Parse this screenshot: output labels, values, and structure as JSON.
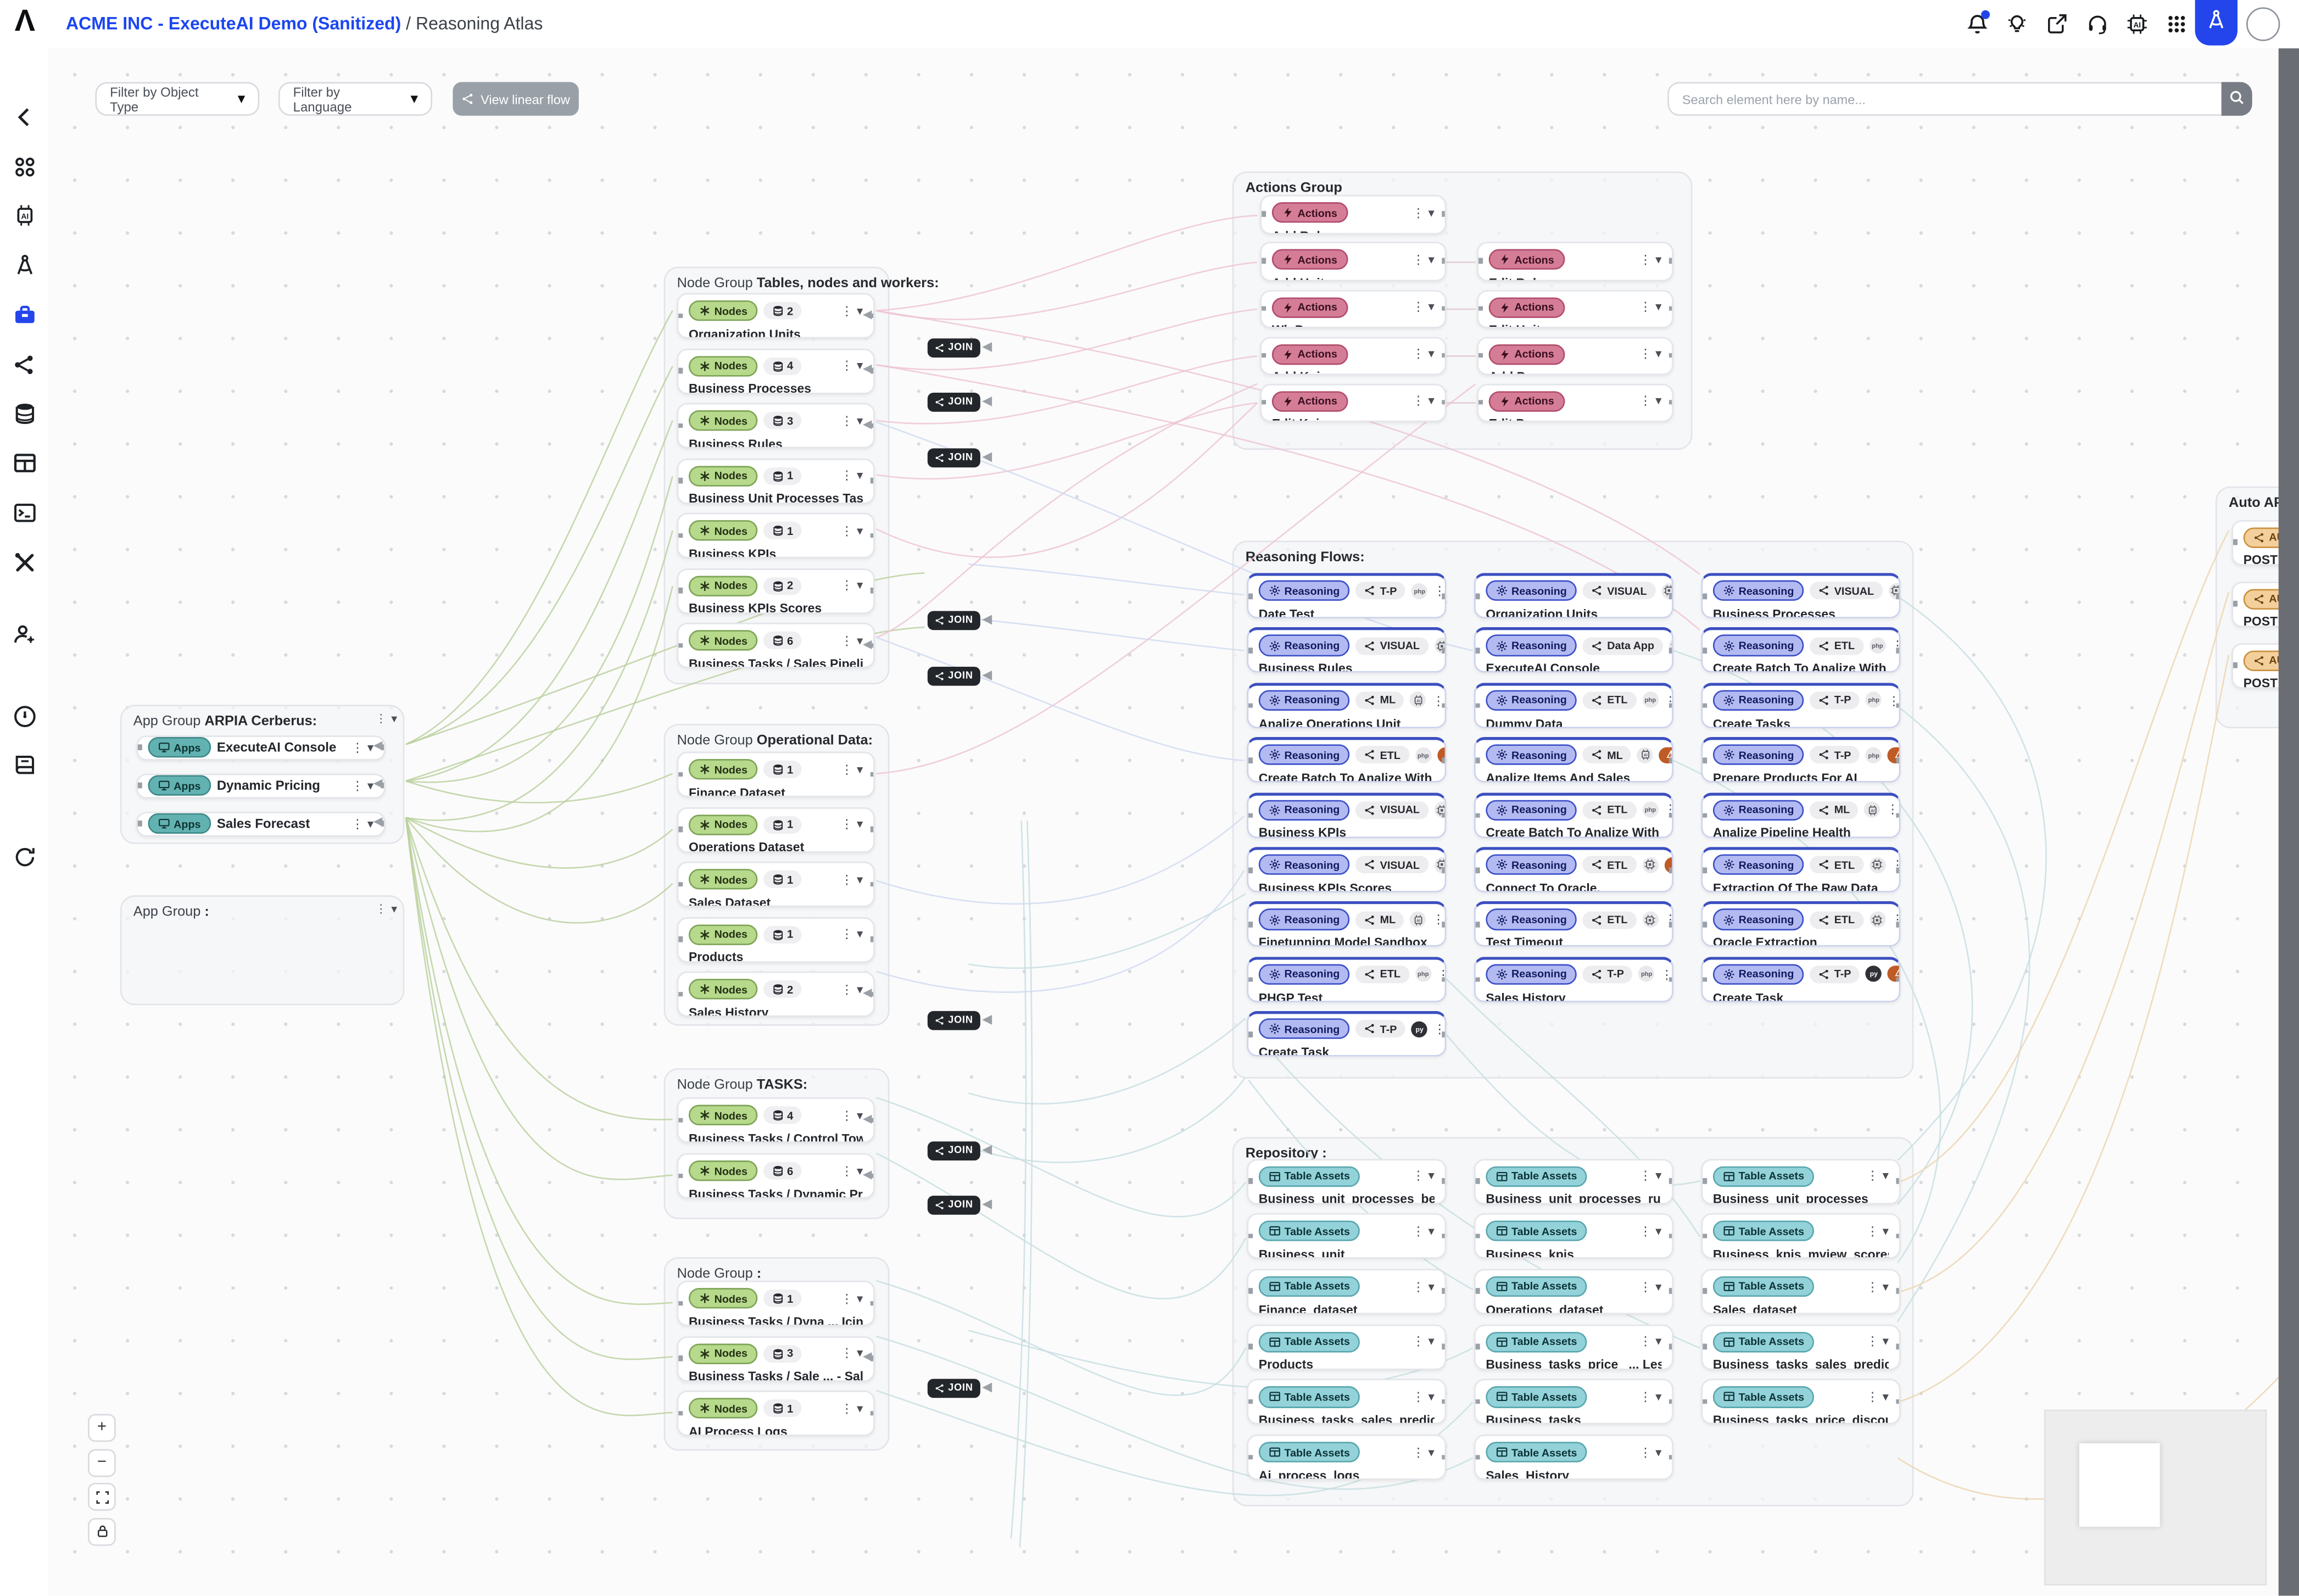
{
  "topbar": {
    "logo": "Λ",
    "breadcrumb": {
      "workspace": "ACME INC - ExecuteAI Demo (Sanitized)",
      "separator": "/",
      "page": "Reasoning Atlas"
    }
  },
  "toolbar": {
    "filter_object_type": "Filter by Object Type",
    "filter_language": "Filter by Language",
    "view_linear_flow": "View linear flow",
    "search": {
      "placeholder": "Search element here by name..."
    }
  },
  "sidebar": {
    "items": [
      "back",
      "apps",
      "ai-chip",
      "design-compass",
      "toolbox",
      "data-flows",
      "database",
      "tables",
      "terminal",
      "tools",
      "user-settings",
      "monitoring",
      "documentation",
      "refresh"
    ],
    "active": "toolbox"
  },
  "pills": {
    "nodes": "Nodes",
    "apps": "Apps",
    "actions": "Actions",
    "reasoning": "Reasoning",
    "table_assets": "Table Assets",
    "auto_api": "AUTO API"
  },
  "canvas": {
    "join_label": "JOIN",
    "groups": {
      "tables": {
        "prefix": "Node Group",
        "name": "Tables, nodes and workers:",
        "cards": [
          {
            "count": 2,
            "title": "Organization Units"
          },
          {
            "count": 4,
            "title": "Business Processes"
          },
          {
            "count": 3,
            "title": "Business Rules"
          },
          {
            "count": 1,
            "title": "Business Unit Processes Tasks Behaviors"
          },
          {
            "count": 1,
            "title": "Business KPIs"
          },
          {
            "count": 2,
            "title": "Business KPIs Scores"
          },
          {
            "count": 6,
            "title": "Business Tasks / Sales Pipeline"
          }
        ]
      },
      "operational": {
        "prefix": "Node Group",
        "name": "Operational Data:",
        "cards": [
          {
            "count": 1,
            "title": "Finance Dataset"
          },
          {
            "count": 1,
            "title": "Operations Dataset"
          },
          {
            "count": 1,
            "title": "Sales Dataset"
          },
          {
            "count": 1,
            "title": "Products"
          },
          {
            "count": 2,
            "title": "Sales History"
          }
        ]
      },
      "tasks": {
        "prefix": "Node Group",
        "name": "TASKS:",
        "cards": [
          {
            "count": 4,
            "title": "Business Tasks / Control Tower"
          },
          {
            "count": 6,
            "title": "Business Tasks / Dynamic Pricing"
          }
        ]
      },
      "unnamed": {
        "prefix": "Node Group",
        "name": ":",
        "cards": [
          {
            "count": 1,
            "title": "Business Tasks / Dyna ... Icing - Sales Details"
          },
          {
            "count": 3,
            "title": "Business Tasks / Sale ... - Sales Detail Period"
          },
          {
            "count": 1,
            "title": "AI Process Logs"
          }
        ]
      },
      "app_cerberus": {
        "prefix": "App Group",
        "name": "ARPIA Cerberus:",
        "cards": [
          {
            "title": "ExecuteAI Console"
          },
          {
            "title": "Dynamic Pricing"
          },
          {
            "title": "Sales Forecast"
          }
        ]
      },
      "app_empty": {
        "prefix": "App Group",
        "name": ":"
      },
      "actions": {
        "name": "Actions Group",
        "col1": [
          "Add Rule",
          "Add Unit",
          "Wb Process",
          "Add Kpi",
          "Edit Kpi"
        ],
        "col2": [
          "Edit Rule",
          "Edit Unit",
          "Add Process",
          "Edit Process"
        ]
      },
      "reasoning": {
        "name": "Reasoning Flows:",
        "columns": [
          [
            {
              "title": "Date Test",
              "tag": "T-P",
              "badges": [
                "php"
              ]
            },
            {
              "title": "Business Rules",
              "tag": "VISUAL",
              "badges": [
                "chip"
              ]
            },
            {
              "title": "Analize Operations Unit",
              "tag": "ML",
              "badges": [
                "aichip"
              ]
            },
            {
              "title": "Create Batch To Analize With AI Worker",
              "tag": "ETL",
              "badges": [
                "php",
                "warn"
              ]
            },
            {
              "title": "Business KPIs",
              "tag": "VISUAL",
              "badges": [
                "chip"
              ]
            },
            {
              "title": "Business KPIs Scores",
              "tag": "VISUAL",
              "badges": [
                "chip"
              ]
            },
            {
              "title": "Finetunning Model Sandbox",
              "tag": "ML",
              "badges": [
                "aichip"
              ]
            },
            {
              "title": "PHGP Test",
              "tag": "ETL",
              "badges": [
                "php"
              ]
            },
            {
              "title": "Create Task",
              "tag": "T-P",
              "badges": [
                "py"
              ]
            }
          ],
          [
            {
              "title": "Organization Units",
              "tag": "VISUAL",
              "badges": [
                "chip"
              ]
            },
            {
              "title": "ExecuteAI Console",
              "tag": "Data App",
              "badges": [
                "chip"
              ]
            },
            {
              "title": "Dummy Data",
              "tag": "ETL",
              "badges": [
                "php"
              ]
            },
            {
              "title": "Analize Items And Sales",
              "tag": "ML",
              "badges": [
                "aichip",
                "warn"
              ]
            },
            {
              "title": "Create Batch To Analize With AI Worker",
              "tag": "ETL",
              "badges": [
                "php"
              ]
            },
            {
              "title": "Connect To Oracle.",
              "tag": "ETL",
              "badges": [
                "chip",
                "warn"
              ]
            },
            {
              "title": "Test Timeout",
              "tag": "ETL",
              "badges": [
                "chip"
              ]
            },
            {
              "title": "Sales History",
              "tag": "T-P",
              "badges": [
                "php"
              ]
            }
          ],
          [
            {
              "title": "Business Processes",
              "tag": "VISUAL",
              "badges": [
                "chip"
              ]
            },
            {
              "title": "Create Batch To Analize With AI Worker",
              "tag": "ETL",
              "badges": [
                "php"
              ]
            },
            {
              "title": "Create Tasks",
              "tag": "T-P",
              "badges": [
                "php"
              ]
            },
            {
              "title": "Prepare Products For AI",
              "tag": "T-P",
              "badges": [
                "php",
                "warn"
              ]
            },
            {
              "title": "Analize Pipeline Health",
              "tag": "ML",
              "badges": [
                "aichip"
              ]
            },
            {
              "title": "Extraction Of The Raw Data",
              "tag": "ETL",
              "badges": [
                "chip"
              ]
            },
            {
              "title": "Oracle Extraction",
              "tag": "ETL",
              "badges": [
                "chip"
              ]
            },
            {
              "title": "Create Task",
              "tag": "T-P",
              "badges": [
                "py",
                "warn"
              ]
            }
          ]
        ]
      },
      "repository": {
        "name": "Repository :",
        "columns": [
          [
            "Business_unit_processes_behaviors",
            "Business_unit",
            "Finance_dataset",
            "Products",
            "Business_tasks_sales_prediction",
            "Ai_process_logs"
          ],
          [
            "Business_unit_processes_rules",
            "Business_kpis",
            "Operations_dataset",
            "Business_tasks_price_ ... Les_detail_by_channel",
            "Business_tasks",
            "Sales_History"
          ],
          [
            "Business_unit_processes",
            "Business_kpis_mview_scores",
            "Sales_dataset",
            "Business_tasks_sales_prediction_detail",
            "Business_tasks_price_discount_optimization"
          ]
        ]
      },
      "auto_api": {
        "name": "Auto API:",
        "cards": [
          {
            "title": "POST Sale"
          },
          {
            "title": "POST Proc"
          },
          {
            "title": "POST Fina"
          }
        ]
      }
    }
  },
  "zoom_controls": {
    "zoom_in": "+",
    "zoom_out": "−"
  },
  "colors": {
    "accent_blue": "#2445eb",
    "nodes_green": "#b6d98b",
    "apps_teal": "#62b2b1",
    "actions_pink": "#d57d97",
    "reasoning_blue": "#b3baf2",
    "table_teal": "#93d2d9",
    "auto_api_orange": "#f3cf9b",
    "warning": "#bf5b25"
  }
}
